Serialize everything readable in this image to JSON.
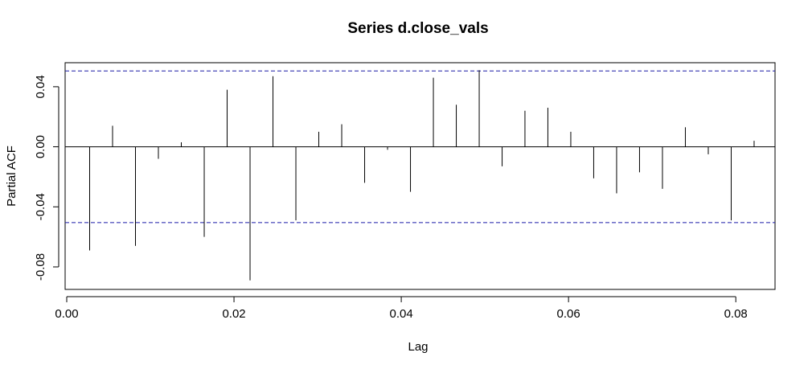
{
  "chart_data": {
    "type": "bar",
    "title": "Series  d.close_vals",
    "xlabel": "Lag",
    "ylabel": "Partial ACF",
    "xlim": [
      0.0,
      0.0845
    ],
    "ylim": [
      -0.095,
      0.056
    ],
    "x_ticks": [
      "0.00",
      "0.02",
      "0.04",
      "0.06",
      "0.08"
    ],
    "y_ticks": [
      "-0.08",
      "-0.04",
      "0.00",
      "0.04"
    ],
    "confidence_bound": 0.0505,
    "colors": {
      "bars": "#000000",
      "confidence_lines": "#1a1aa6"
    },
    "x": [
      0.00274,
      0.00548,
      0.00822,
      0.01096,
      0.0137,
      0.01644,
      0.01918,
      0.02192,
      0.02466,
      0.0274,
      0.03014,
      0.03288,
      0.03562,
      0.03836,
      0.0411,
      0.04384,
      0.04658,
      0.04932,
      0.05206,
      0.05479,
      0.05753,
      0.06027,
      0.06301,
      0.06575,
      0.06849,
      0.07123,
      0.07397,
      0.07671,
      0.07945,
      0.08219
    ],
    "values": [
      -0.069,
      0.014,
      -0.066,
      -0.008,
      0.003,
      -0.06,
      0.038,
      -0.089,
      0.047,
      -0.049,
      0.01,
      0.015,
      -0.024,
      -0.002,
      -0.03,
      0.046,
      0.028,
      0.051,
      -0.013,
      0.024,
      0.026,
      0.01,
      -0.021,
      -0.031,
      -0.017,
      -0.028,
      0.013,
      -0.005,
      -0.049,
      0.004
    ]
  }
}
